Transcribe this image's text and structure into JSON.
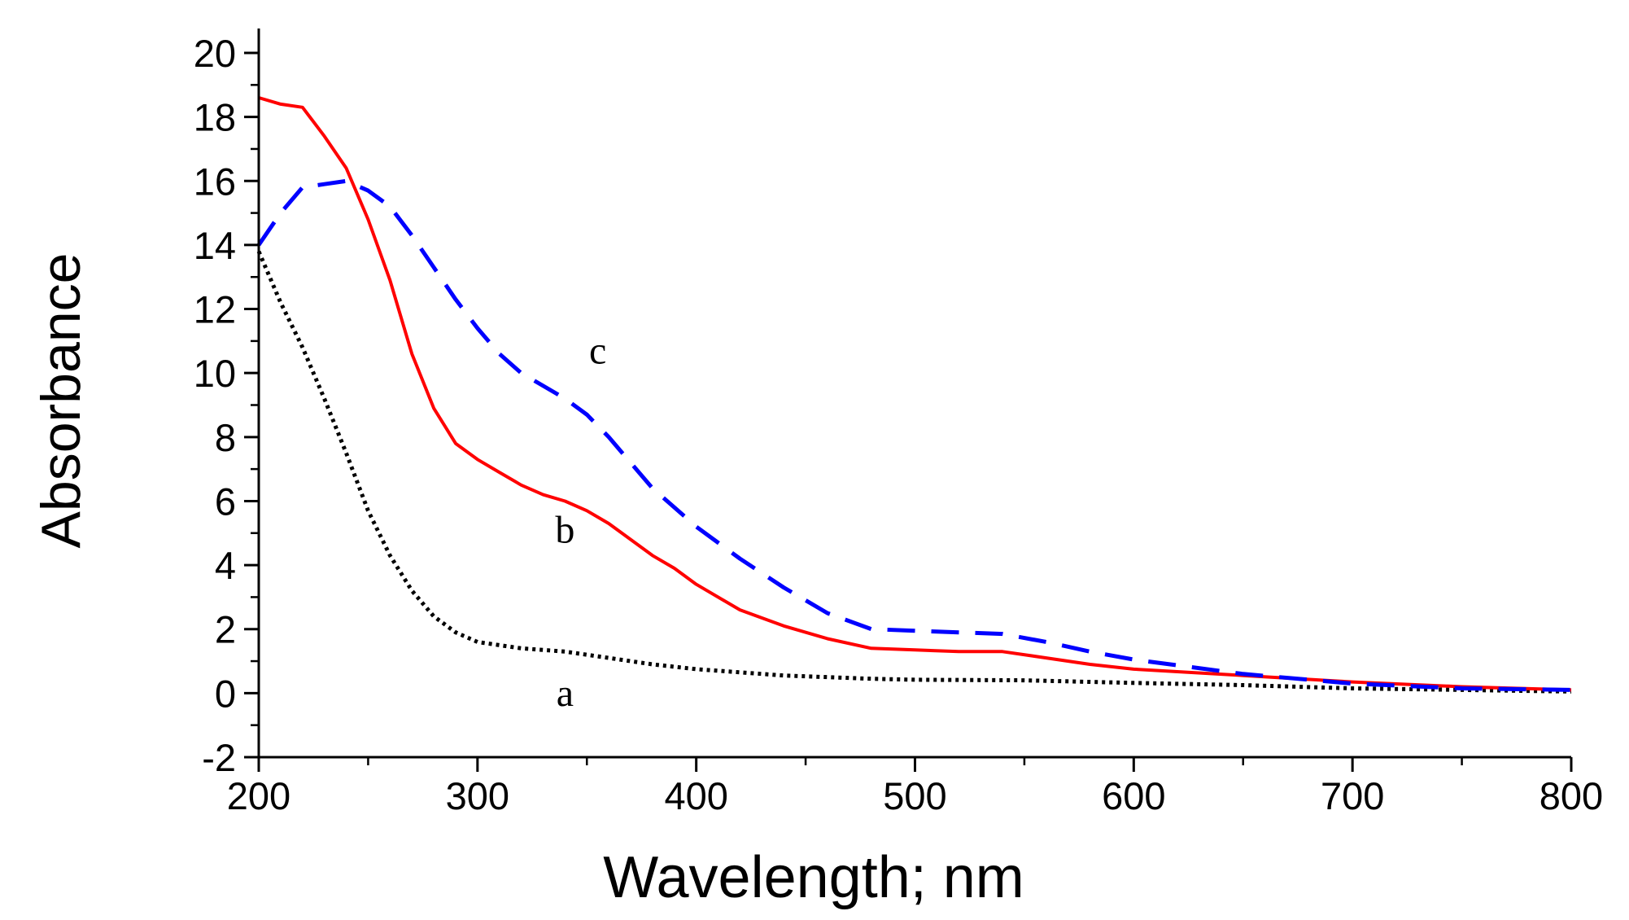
{
  "chart_data": {
    "type": "line",
    "title": "",
    "xlabel": "Wavelength; nm",
    "ylabel": "Absorbance",
    "xlim": [
      200,
      800
    ],
    "ylim": [
      -2,
      21
    ],
    "x_ticks": [
      200,
      300,
      400,
      500,
      600,
      700,
      800
    ],
    "x_tick_labels": [
      "200",
      "300",
      "400",
      "500",
      "600",
      "700",
      "800"
    ],
    "y_ticks": [
      -2,
      0,
      2,
      4,
      6,
      8,
      10,
      12,
      14,
      16,
      18,
      20
    ],
    "y_tick_labels": [
      "-2",
      "0",
      "2",
      "4",
      "6",
      "8",
      "10",
      "12",
      "14",
      "16",
      "18",
      "20"
    ],
    "grid": false,
    "legend": "none",
    "series": [
      {
        "name": "a",
        "label": "a",
        "label_at": [
          340,
          -0.4
        ],
        "color": "#000000",
        "style": "dotted",
        "x": [
          200,
          210,
          220,
          230,
          240,
          250,
          260,
          270,
          280,
          290,
          300,
          320,
          340,
          360,
          380,
          400,
          420,
          440,
          460,
          480,
          500,
          550,
          600,
          650,
          700,
          750,
          800
        ],
        "y": [
          13.8,
          12.2,
          10.8,
          9.2,
          7.5,
          5.7,
          4.3,
          3.2,
          2.4,
          1.9,
          1.6,
          1.4,
          1.3,
          1.1,
          0.9,
          0.75,
          0.65,
          0.55,
          0.5,
          0.45,
          0.42,
          0.4,
          0.32,
          0.25,
          0.15,
          0.1,
          0.05
        ]
      },
      {
        "name": "b",
        "label": "b",
        "label_at": [
          340,
          4.7
        ],
        "color": "#ff0000",
        "style": "solid",
        "x": [
          200,
          210,
          220,
          230,
          240,
          250,
          260,
          270,
          280,
          290,
          300,
          310,
          320,
          330,
          340,
          350,
          360,
          370,
          380,
          390,
          400,
          420,
          440,
          460,
          480,
          500,
          520,
          540,
          560,
          580,
          600,
          650,
          700,
          750,
          800
        ],
        "y": [
          18.6,
          18.4,
          18.3,
          17.4,
          16.4,
          14.8,
          12.9,
          10.6,
          8.9,
          7.8,
          7.3,
          6.9,
          6.5,
          6.2,
          6.0,
          5.7,
          5.3,
          4.8,
          4.3,
          3.9,
          3.4,
          2.6,
          2.1,
          1.7,
          1.4,
          1.35,
          1.3,
          1.3,
          1.1,
          0.9,
          0.75,
          0.55,
          0.35,
          0.2,
          0.1
        ]
      },
      {
        "name": "c",
        "label": "c",
        "label_at": [
          355,
          10.3
        ],
        "color": "#0000ff",
        "style": "dashed",
        "x": [
          200,
          210,
          220,
          230,
          240,
          250,
          260,
          270,
          280,
          290,
          300,
          310,
          320,
          330,
          340,
          350,
          360,
          370,
          380,
          390,
          400,
          420,
          440,
          460,
          480,
          500,
          520,
          540,
          560,
          580,
          600,
          650,
          700,
          750,
          800
        ],
        "y": [
          14.0,
          15.0,
          15.8,
          15.9,
          16.0,
          15.7,
          15.2,
          14.3,
          13.3,
          12.3,
          11.4,
          10.6,
          10.0,
          9.6,
          9.2,
          8.7,
          8.0,
          7.2,
          6.4,
          5.8,
          5.2,
          4.2,
          3.3,
          2.5,
          2.0,
          1.95,
          1.9,
          1.85,
          1.6,
          1.3,
          1.05,
          0.6,
          0.3,
          0.15,
          0.1
        ]
      }
    ]
  }
}
